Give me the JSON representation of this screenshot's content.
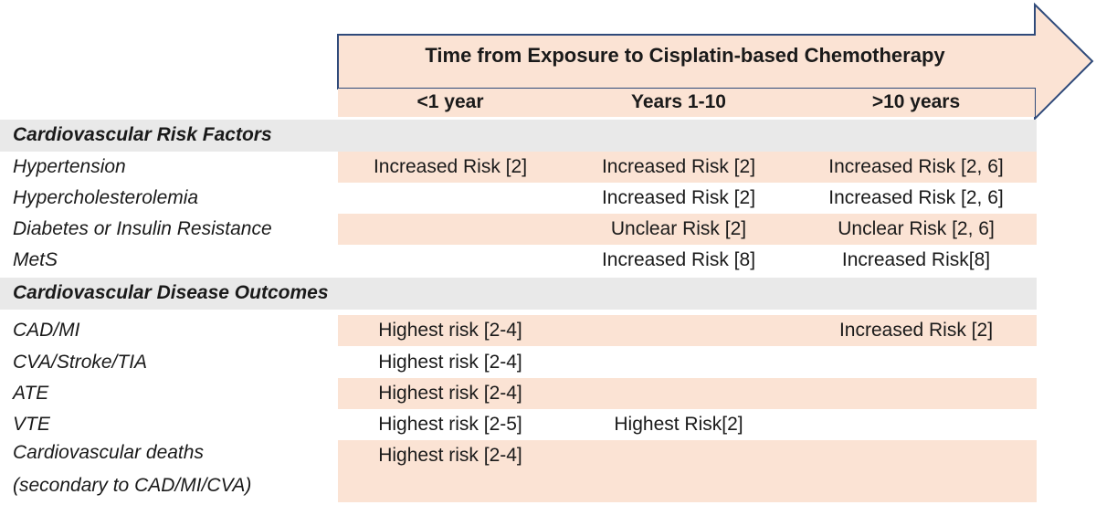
{
  "header": {
    "title": "Time from Exposure to Cisplatin-based Chemotherapy",
    "columns": [
      "<1 year",
      "Years 1-10",
      ">10 years"
    ]
  },
  "colors": {
    "arrow_fill": "#fbe3d4",
    "arrow_stroke": "#2f4a7a",
    "section_bg": "#e9e9e9"
  },
  "sections": [
    {
      "title": "Cardiovascular Risk Factors",
      "rows": [
        {
          "label": "Hypertension",
          "cells": [
            "Increased Risk [2]",
            "Increased Risk [2]",
            "Increased Risk [2, 6]"
          ]
        },
        {
          "label": "Hypercholesterolemia",
          "cells": [
            "",
            "Increased Risk [2]",
            "Increased Risk [2, 6]"
          ]
        },
        {
          "label": "Diabetes or Insulin Resistance",
          "cells": [
            "",
            "Unclear Risk [2]",
            "Unclear Risk [2, 6]"
          ]
        },
        {
          "label": "MetS",
          "cells": [
            "",
            "Increased Risk [8]",
            "Increased Risk[8]"
          ]
        }
      ]
    },
    {
      "title": "Cardiovascular Disease Outcomes",
      "rows": [
        {
          "label": "CAD/MI",
          "cells": [
            "Highest risk [2-4]",
            "",
            "Increased Risk [2]"
          ]
        },
        {
          "label": "CVA/Stroke/TIA",
          "cells": [
            "Highest risk [2-4]",
            "",
            ""
          ]
        },
        {
          "label": "ATE",
          "cells": [
            "Highest risk [2-4]",
            "",
            ""
          ]
        },
        {
          "label": "VTE",
          "cells": [
            "Highest risk [2-5]",
            "Highest Risk[2]",
            ""
          ]
        },
        {
          "label": "Cardiovascular deaths",
          "label_line2": "(secondary to CAD/MI/CVA)",
          "cells": [
            "Highest risk [2-4]",
            "",
            ""
          ]
        }
      ]
    }
  ]
}
